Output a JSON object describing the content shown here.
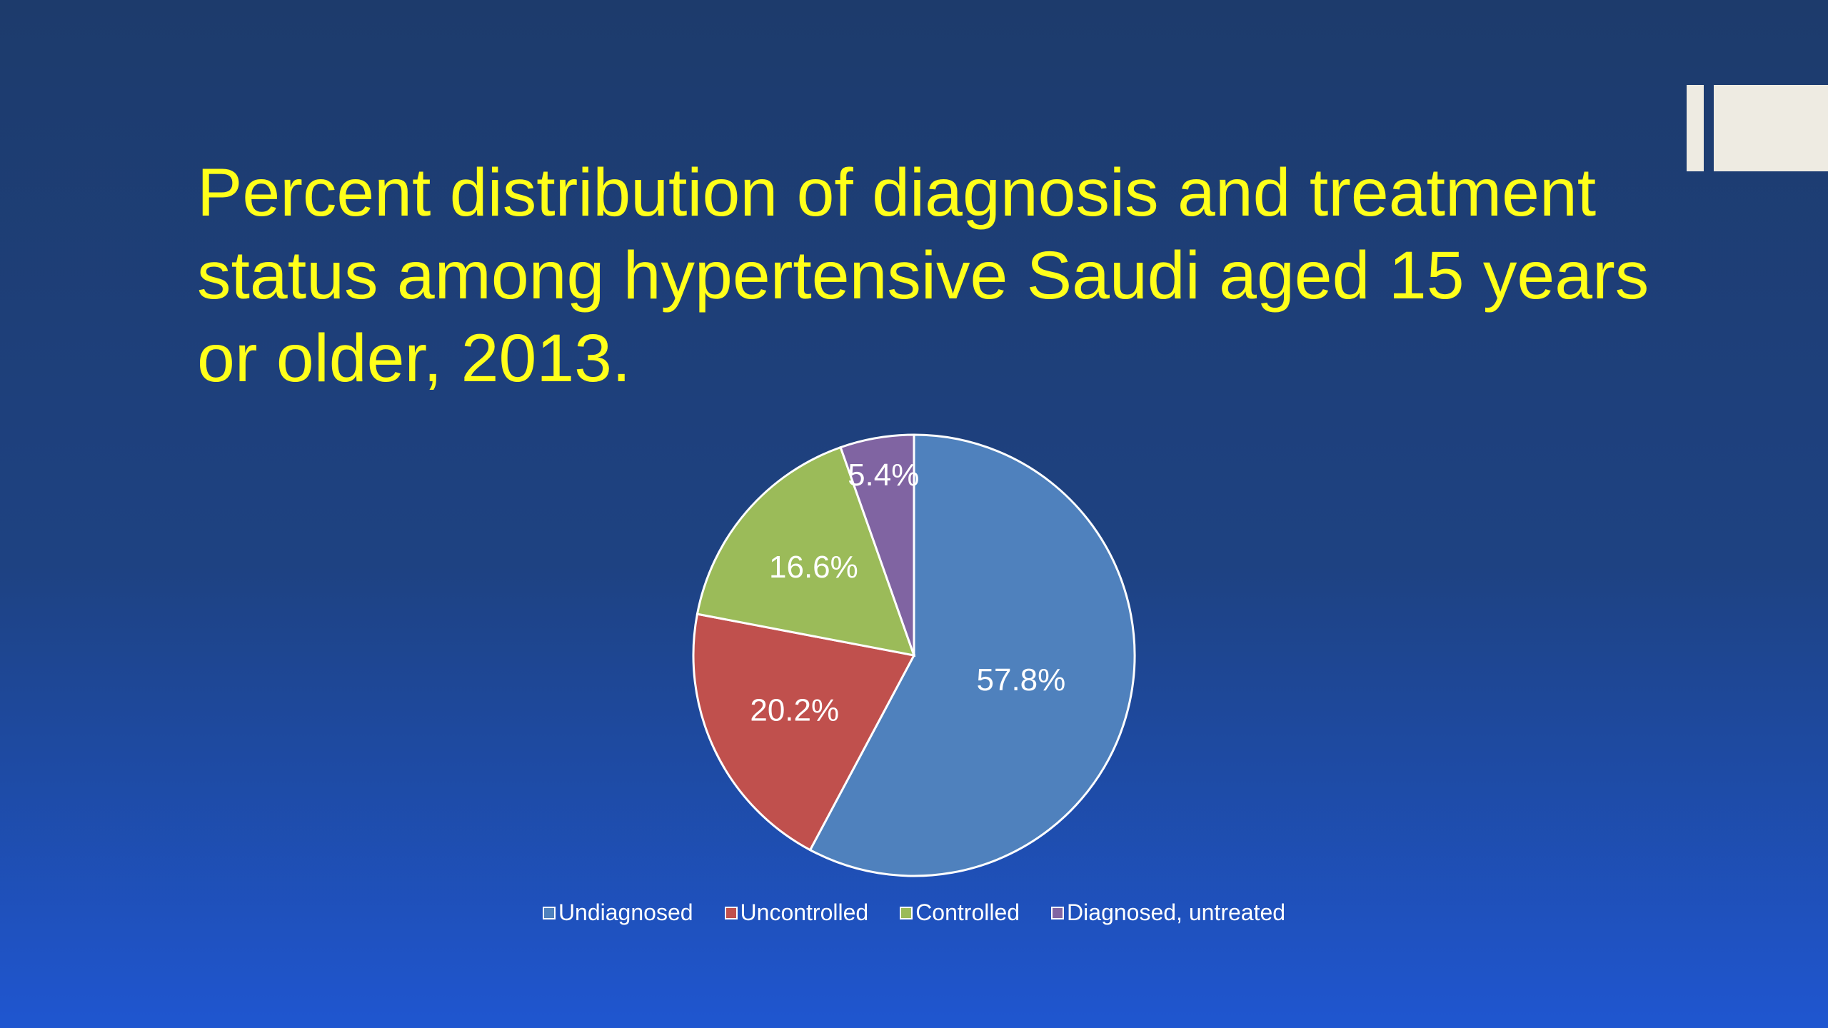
{
  "chart_data": {
    "type": "pie",
    "title": "Percent distribution of diagnosis and treatment status among hypertensive Saudi aged 15 years or older, 2013.",
    "categories": [
      "Undiagnosed",
      "Uncontrolled",
      "Controlled",
      "Diagnosed, untreated"
    ],
    "values": [
      57.8,
      20.2,
      16.6,
      5.4
    ],
    "value_labels": [
      "57.8%",
      "20.2%",
      "16.6%",
      "5.4%"
    ],
    "colors": [
      "#4f81bd",
      "#c0504d",
      "#9bbb59",
      "#8064a2"
    ],
    "legend": "bottom"
  }
}
